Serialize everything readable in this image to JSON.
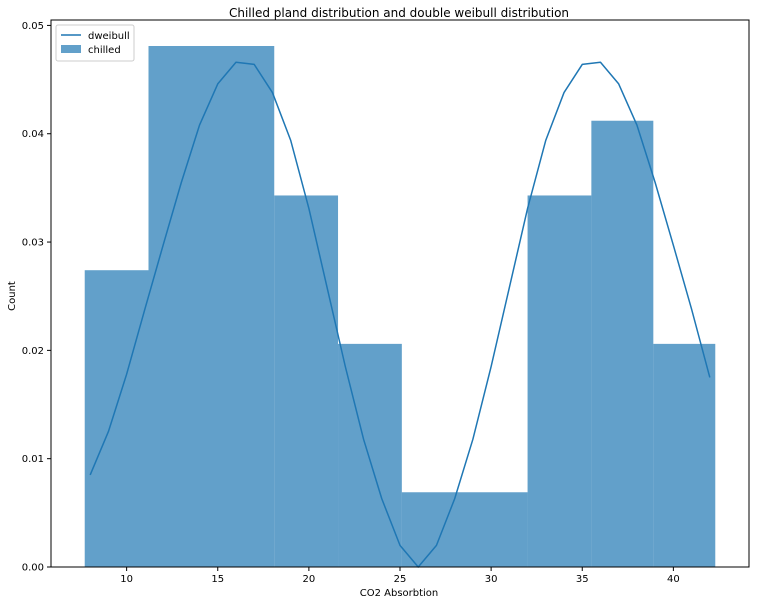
{
  "chart_data": {
    "type": "bar",
    "title": "Chilled pland distribution and double weibull distribution",
    "xlabel": "CO2 Absorbtion",
    "ylabel": "Count",
    "xlim": [
      5.85,
      44.15
    ],
    "ylim": [
      0,
      0.0505
    ],
    "x_ticks": [
      10,
      15,
      20,
      25,
      30,
      35,
      40
    ],
    "y_ticks": [
      0.0,
      0.01,
      0.02,
      0.03,
      0.04,
      0.05
    ],
    "x_tick_labels": [
      "10",
      "15",
      "20",
      "25",
      "30",
      "35",
      "40"
    ],
    "y_tick_labels": [
      "0.00",
      "0.01",
      "0.02",
      "0.03",
      "0.04",
      "0.05"
    ],
    "grid": false,
    "legend": {
      "position": "top-left",
      "entries": [
        "dweibull",
        "chilled"
      ]
    },
    "histogram": {
      "name": "chilled",
      "color": "#1f77b4",
      "bins": [
        {
          "x0": 7.7,
          "x1": 11.2,
          "value": 0.0274
        },
        {
          "x0": 11.2,
          "x1": 18.1,
          "value": 0.0481
        },
        {
          "x0": 18.1,
          "x1": 21.6,
          "value": 0.0343
        },
        {
          "x0": 21.6,
          "x1": 25.1,
          "value": 0.0206
        },
        {
          "x0": 25.1,
          "x1": 32.0,
          "value": 0.0069
        },
        {
          "x0": 32.0,
          "x1": 35.5,
          "value": 0.0343
        },
        {
          "x0": 35.5,
          "x1": 38.9,
          "value": 0.0412
        },
        {
          "x0": 38.9,
          "x1": 42.3,
          "value": 0.0206
        }
      ]
    },
    "series": [
      {
        "name": "dweibull",
        "color": "#1f77b4",
        "x": [
          8,
          9,
          10,
          11,
          12,
          13,
          14,
          15,
          16,
          17,
          18,
          19,
          20,
          21,
          22,
          23,
          24,
          25,
          26,
          27,
          28,
          29,
          30,
          31,
          32,
          33,
          34,
          35,
          36,
          37,
          38,
          39,
          40,
          41,
          42
        ],
        "y": [
          0.0085,
          0.0125,
          0.0178,
          0.0238,
          0.0297,
          0.0355,
          0.0408,
          0.0446,
          0.0466,
          0.0464,
          0.0438,
          0.0394,
          0.0331,
          0.0258,
          0.0185,
          0.0118,
          0.0063,
          0.002,
          0.0,
          0.002,
          0.0063,
          0.0118,
          0.0185,
          0.0258,
          0.0331,
          0.0394,
          0.0438,
          0.0464,
          0.0466,
          0.0446,
          0.0408,
          0.0355,
          0.0297,
          0.0238,
          0.0175
        ]
      }
    ]
  }
}
